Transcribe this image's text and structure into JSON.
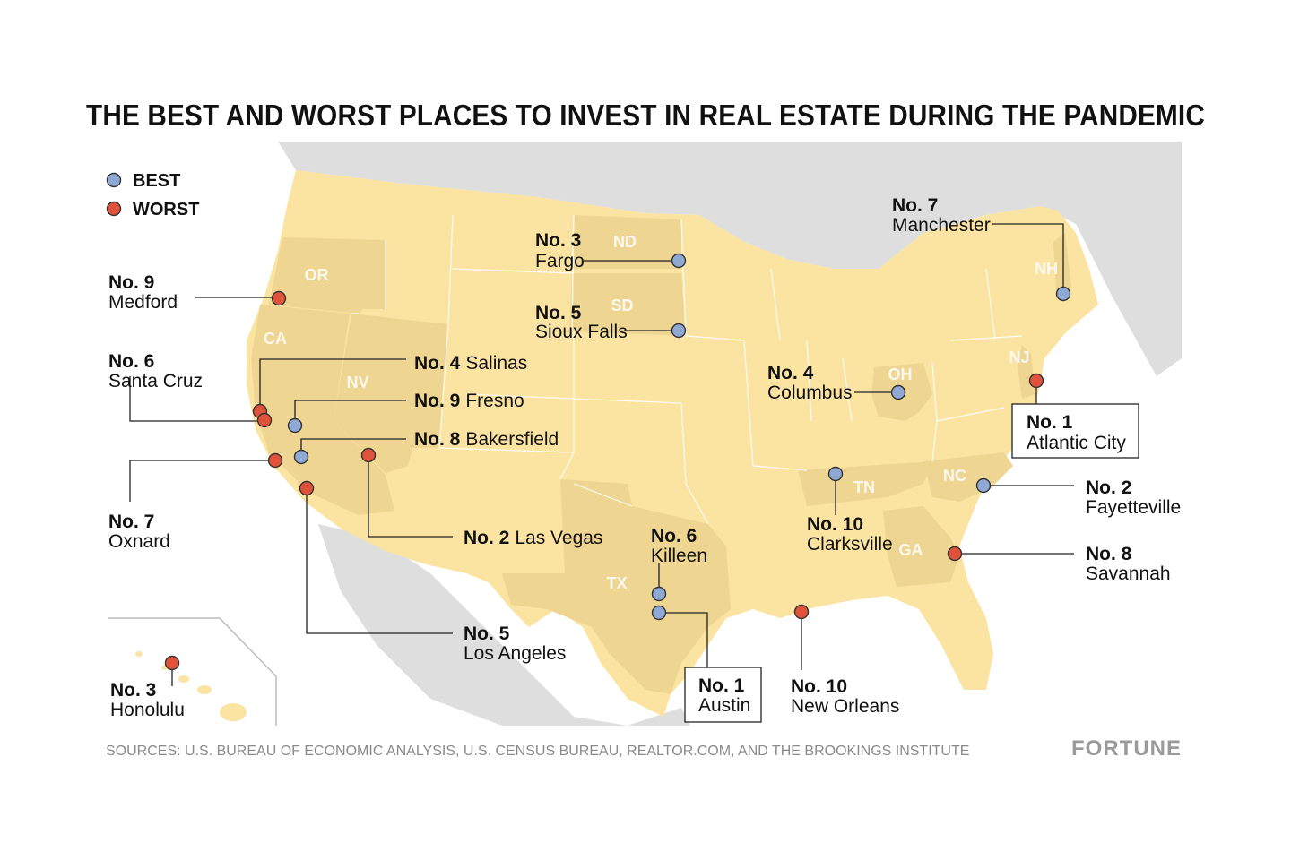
{
  "title": "THE BEST AND WORST PLACES TO INVEST IN REAL ESTATE DURING THE PANDEMIC",
  "legend": {
    "best": "BEST",
    "worst": "WORST"
  },
  "colors": {
    "best": "#8fa8d4",
    "worst": "#e0533a",
    "land": "#fbe3a2",
    "highlight_state": "#efd592",
    "background_land": "#dedede",
    "water": "#ffffff"
  },
  "state_labels": [
    "OR",
    "CA",
    "NV",
    "ND",
    "SD",
    "TX",
    "OH",
    "TN",
    "GA",
    "NC",
    "NJ",
    "NH"
  ],
  "best": [
    {
      "rank": "No. 1",
      "city": "Austin"
    },
    {
      "rank": "No. 2",
      "city": "Fayetteville"
    },
    {
      "rank": "No. 3",
      "city": "Fargo"
    },
    {
      "rank": "No. 4",
      "city": "Columbus"
    },
    {
      "rank": "No. 5",
      "city": "Sioux Falls"
    },
    {
      "rank": "No. 6",
      "city": "Killeen"
    },
    {
      "rank": "No. 7",
      "city": "Manchester"
    },
    {
      "rank": "No. 8",
      "city": "Bakersfield"
    },
    {
      "rank": "No. 9",
      "city": "Fresno"
    },
    {
      "rank": "No. 10",
      "city": "Clarksville"
    }
  ],
  "worst": [
    {
      "rank": "No. 1",
      "city": "Atlantic City"
    },
    {
      "rank": "No. 2",
      "city": "Las Vegas"
    },
    {
      "rank": "No. 3",
      "city": "Honolulu"
    },
    {
      "rank": "No. 4",
      "city": "Salinas"
    },
    {
      "rank": "No. 5",
      "city": "Los Angeles"
    },
    {
      "rank": "No. 6",
      "city": "Santa Cruz"
    },
    {
      "rank": "No. 7",
      "city": "Oxnard"
    },
    {
      "rank": "No. 8",
      "city": "Savannah"
    },
    {
      "rank": "No. 9",
      "city": "Medford"
    },
    {
      "rank": "No. 10",
      "city": "New Orleans"
    }
  ],
  "source": "SOURCES: U.S. BUREAU OF ECONOMIC ANALYSIS, U.S. CENSUS BUREAU, REALTOR.COM, AND THE BROOKINGS INSTITUTE",
  "brand": "FORTUNE"
}
